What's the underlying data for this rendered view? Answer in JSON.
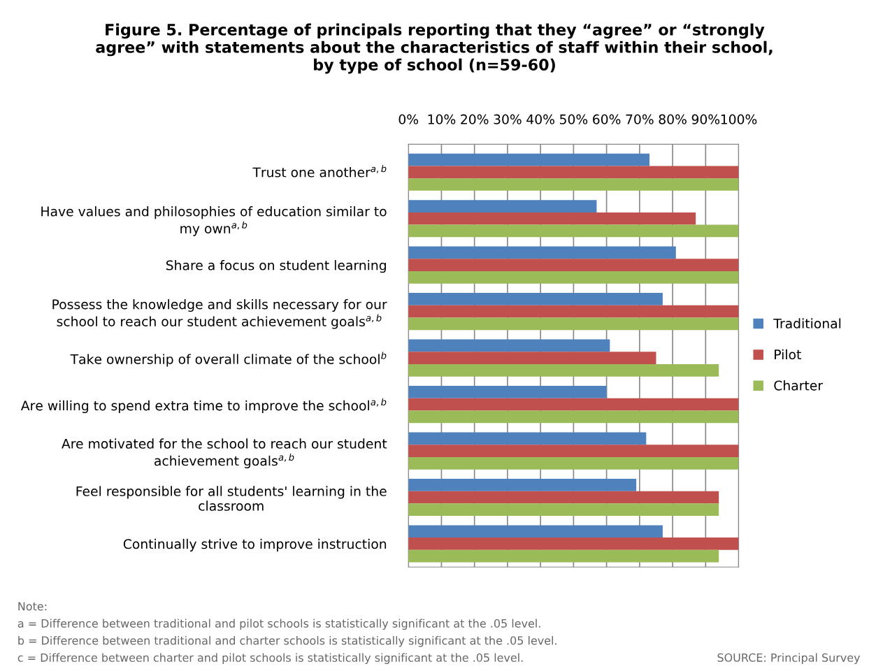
{
  "chart_data": {
    "type": "bar",
    "orientation": "horizontal",
    "title": "Figure 5. Percentage of principals reporting that they “agree” or “strongly agree” with statements about the characteristics of staff within their school, by type of school (n=59-60)",
    "categories": [
      "Trust one another$^{a,b}$",
      "Have values and philosophies of education similar to\nmy own$^{a,b}$",
      "Share a focus on student learning",
      "Possess the knowledge and skills necessary for our\nschool to reach our student achievement goals$^{a,b}$",
      "Take ownership of overall climate of the school$^{b}$",
      "Are willing to spend extra time to improve the school$^{a,b}$",
      "Are motivated for the school to reach our student\nachievement goals$^{a,b}$",
      "Feel responsible for all students' learning in the\nclassroom",
      "Continually strive to improve instruction"
    ],
    "series": [
      {
        "name": "Traditional",
        "color": "#4f81bd",
        "values": [
          73,
          57,
          81,
          77,
          61,
          60,
          72,
          69,
          77
        ]
      },
      {
        "name": "Pilot",
        "color": "#c0504d",
        "values": [
          100,
          87,
          100,
          100,
          75,
          100,
          100,
          94,
          100
        ]
      },
      {
        "name": "Charter",
        "color": "#9bbb59",
        "values": [
          100,
          100,
          100,
          100,
          94,
          100,
          100,
          94,
          94
        ]
      }
    ],
    "xlim": [
      0,
      100
    ],
    "xticks": [
      {
        "value": 0,
        "label": "0%"
      },
      {
        "value": 10,
        "label": "10%"
      },
      {
        "value": 20,
        "label": "20%"
      },
      {
        "value": 30,
        "label": "30%"
      },
      {
        "value": 40,
        "label": "40%"
      },
      {
        "value": 50,
        "label": "50%"
      },
      {
        "value": 60,
        "label": "60%"
      },
      {
        "value": 70,
        "label": "70%"
      },
      {
        "value": 80,
        "label": "80%"
      },
      {
        "value": 90,
        "label": "90%"
      },
      {
        "value": 100,
        "label": "100%"
      }
    ],
    "grid": "x",
    "legend": "right",
    "annotations": [
      "Note:",
      "a = Difference between traditional and pilot schools is statistically significant at the .05 level.",
      "b = Difference between traditional and charter schools is statistically significant at the .05 level.",
      "c = Difference between charter and pilot schools is statistically significant at the .05 level.",
      "SOURCE: Principal Survey"
    ]
  }
}
